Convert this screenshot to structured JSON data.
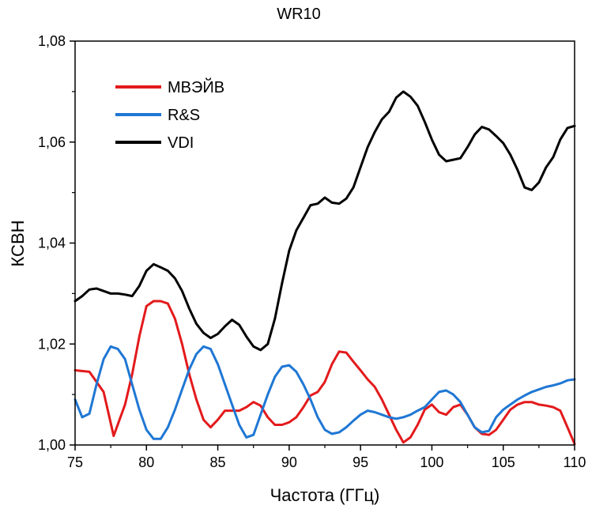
{
  "chart_data": {
    "type": "line",
    "title": "WR10",
    "xlabel": "Частота (ГГц)",
    "ylabel": "КСВН",
    "xlim": [
      75,
      110
    ],
    "ylim": [
      1.0,
      1.08
    ],
    "xticks": [
      75,
      80,
      85,
      90,
      95,
      100,
      105,
      110
    ],
    "xtick_labels": [
      "75",
      "80",
      "85",
      "90",
      "95",
      "100",
      "105",
      "110"
    ],
    "yticks": [
      1.0,
      1.02,
      1.04,
      1.06,
      1.08
    ],
    "ytick_labels": [
      "1,00",
      "1,02",
      "1,04",
      "1,06",
      "1,08"
    ],
    "grid": false,
    "legend_position": "top-left",
    "series": [
      {
        "name": "МВЭЙВ",
        "color": "#e31a1c",
        "x": [
          75,
          76,
          77,
          77.7,
          78.5,
          79,
          79.5,
          80,
          80.5,
          81,
          81.5,
          82,
          82.5,
          83,
          83.5,
          84,
          84.5,
          85,
          85.5,
          86,
          86.5,
          87,
          87.5,
          88,
          88.5,
          89,
          89.5,
          90,
          90.5,
          91,
          91.5,
          92,
          92.5,
          93,
          93.5,
          94,
          94.5,
          95,
          95.5,
          96,
          96.5,
          97,
          97.5,
          98,
          98.5,
          99,
          99.5,
          100,
          100.5,
          101,
          101.5,
          102,
          102.5,
          103,
          103.5,
          104,
          104.5,
          105,
          105.5,
          106,
          106.5,
          107,
          107.5,
          108,
          108.5,
          109,
          109.5,
          110
        ],
        "values": [
          1.0148,
          1.0145,
          1.0105,
          1.0018,
          1.008,
          1.014,
          1.0215,
          1.0275,
          1.0285,
          1.0285,
          1.028,
          1.025,
          1.02,
          1.014,
          1.009,
          1.005,
          1.0035,
          1.005,
          1.0068,
          1.0068,
          1.0068,
          1.0075,
          1.0085,
          1.0078,
          1.0055,
          1.004,
          1.004,
          1.0045,
          1.0055,
          1.0075,
          1.0098,
          1.0105,
          1.0125,
          1.016,
          1.0185,
          1.0183,
          1.0165,
          1.0148,
          1.013,
          1.0115,
          1.009,
          1.006,
          1.003,
          1.0005,
          1.0015,
          1.004,
          1.007,
          1.008,
          1.0065,
          1.006,
          1.0075,
          1.008,
          1.006,
          1.0035,
          1.0022,
          1.002,
          1.003,
          1.005,
          1.007,
          1.008,
          1.0085,
          1.0085,
          1.008,
          1.0078,
          1.0075,
          1.0068,
          1.0035,
          1.0002
        ]
      },
      {
        "name": "R&S",
        "color": "#1f77d4",
        "x": [
          75,
          75.5,
          76,
          76.5,
          77,
          77.5,
          78,
          78.5,
          79,
          79.5,
          80,
          80.5,
          81,
          81.5,
          82,
          82.5,
          83,
          83.5,
          84,
          84.5,
          85,
          85.5,
          86,
          86.5,
          87,
          87.5,
          88,
          88.5,
          89,
          89.5,
          90,
          90.5,
          91,
          91.5,
          92,
          92.5,
          93,
          93.5,
          94,
          94.5,
          95,
          95.5,
          96,
          96.5,
          97,
          97.5,
          98,
          98.5,
          99,
          99.5,
          100,
          100.5,
          101,
          101.5,
          102,
          102.5,
          103,
          103.5,
          104,
          104.5,
          105,
          105.5,
          106,
          106.5,
          107,
          107.5,
          108,
          108.5,
          109,
          109.5,
          110
        ],
        "values": [
          1.009,
          1.0055,
          1.0062,
          1.012,
          1.017,
          1.0195,
          1.019,
          1.017,
          1.012,
          1.007,
          1.003,
          1.0012,
          1.0012,
          1.0035,
          1.007,
          1.011,
          1.015,
          1.018,
          1.0195,
          1.019,
          1.016,
          1.012,
          1.008,
          1.004,
          1.0015,
          1.002,
          1.006,
          1.01,
          1.0135,
          1.0155,
          1.0158,
          1.0145,
          1.012,
          1.009,
          1.0055,
          1.003,
          1.0022,
          1.0025,
          1.0035,
          1.0048,
          1.006,
          1.0068,
          1.0065,
          1.006,
          1.0055,
          1.0052,
          1.0055,
          1.006,
          1.0068,
          1.0075,
          1.009,
          1.0105,
          1.0108,
          1.01,
          1.0085,
          1.006,
          1.0035,
          1.0025,
          1.0028,
          1.0055,
          1.007,
          1.008,
          1.009,
          1.0098,
          1.0105,
          1.011,
          1.0115,
          1.0118,
          1.0122,
          1.0128,
          1.013
        ]
      },
      {
        "name": "VDI",
        "color": "#000000",
        "x": [
          75,
          75.5,
          76,
          76.5,
          77,
          77.5,
          78,
          78.5,
          79,
          79.5,
          80,
          80.5,
          81,
          81.5,
          82,
          82.5,
          83,
          83.5,
          84,
          84.5,
          85,
          85.5,
          86,
          86.5,
          87,
          87.5,
          88,
          88.5,
          89,
          89.5,
          90,
          90.5,
          91,
          91.5,
          92,
          92.5,
          93,
          93.5,
          94,
          94.5,
          95,
          95.5,
          96,
          96.5,
          97,
          97.5,
          98,
          98.5,
          99,
          99.5,
          100,
          100.5,
          101,
          101.5,
          102,
          102.5,
          103,
          103.5,
          104,
          104.5,
          105,
          105.5,
          106,
          106.5,
          107,
          107.5,
          108,
          108.5,
          109,
          109.5,
          110
        ],
        "values": [
          1.0285,
          1.0295,
          1.0308,
          1.031,
          1.0305,
          1.03,
          1.03,
          1.0298,
          1.0295,
          1.0315,
          1.0345,
          1.0358,
          1.0352,
          1.0345,
          1.033,
          1.0305,
          1.027,
          1.024,
          1.0222,
          1.0212,
          1.022,
          1.0235,
          1.0248,
          1.0238,
          1.0215,
          1.0195,
          1.0188,
          1.02,
          1.025,
          1.032,
          1.0385,
          1.0425,
          1.045,
          1.0475,
          1.0478,
          1.049,
          1.048,
          1.0478,
          1.0488,
          1.051,
          1.055,
          1.059,
          1.062,
          1.0645,
          1.066,
          1.0688,
          1.07,
          1.069,
          1.0672,
          1.064,
          1.0605,
          1.0575,
          1.0562,
          1.0565,
          1.0568,
          1.059,
          1.0615,
          1.063,
          1.0625,
          1.0612,
          1.0598,
          1.0575,
          1.0545,
          1.051,
          1.0505,
          1.052,
          1.055,
          1.057,
          1.0605,
          1.0628,
          1.0632
        ]
      }
    ]
  }
}
